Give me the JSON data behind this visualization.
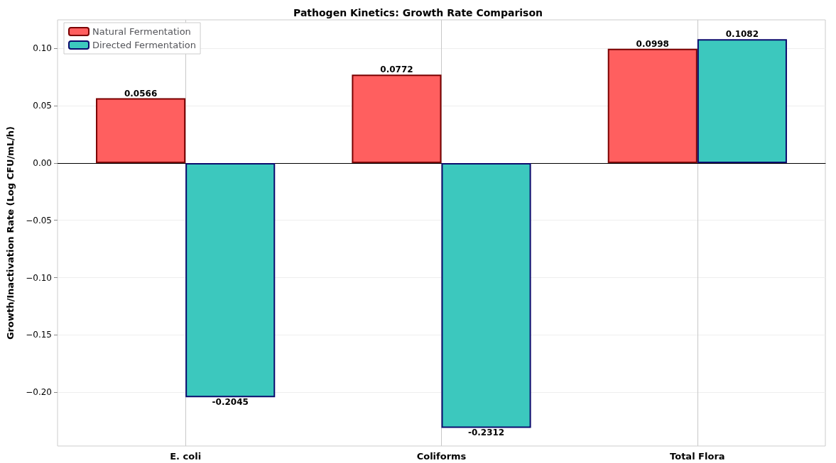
{
  "chart_data": {
    "type": "bar",
    "title": "Pathogen Kinetics: Growth Rate Comparison",
    "ylabel": "Growth/Inactivation Rate (Log CFU/mL/h)",
    "categories": [
      "E. coli",
      "Coliforms",
      "Total Flora"
    ],
    "series": [
      {
        "name": "Natural Fermentation",
        "color": "#ff5f5f",
        "values": [
          0.0566,
          0.0772,
          0.0998
        ]
      },
      {
        "name": "Directed Fermentation",
        "color": "#3cc8be",
        "values": [
          -0.2045,
          -0.2312,
          0.1082
        ]
      }
    ],
    "ylim": [
      -0.247,
      0.125
    ],
    "yticks": [
      {
        "value": -0.2,
        "label": "−0.20"
      },
      {
        "value": -0.15,
        "label": "−0.15"
      },
      {
        "value": -0.1,
        "label": "−0.10"
      },
      {
        "value": -0.05,
        "label": "−0.05"
      },
      {
        "value": 0,
        "label": "0.00"
      },
      {
        "value": 0.05,
        "label": "0.05"
      },
      {
        "value": 0.1,
        "label": "0.10"
      }
    ],
    "grid": true,
    "legend": "top left",
    "data_labels": true
  }
}
